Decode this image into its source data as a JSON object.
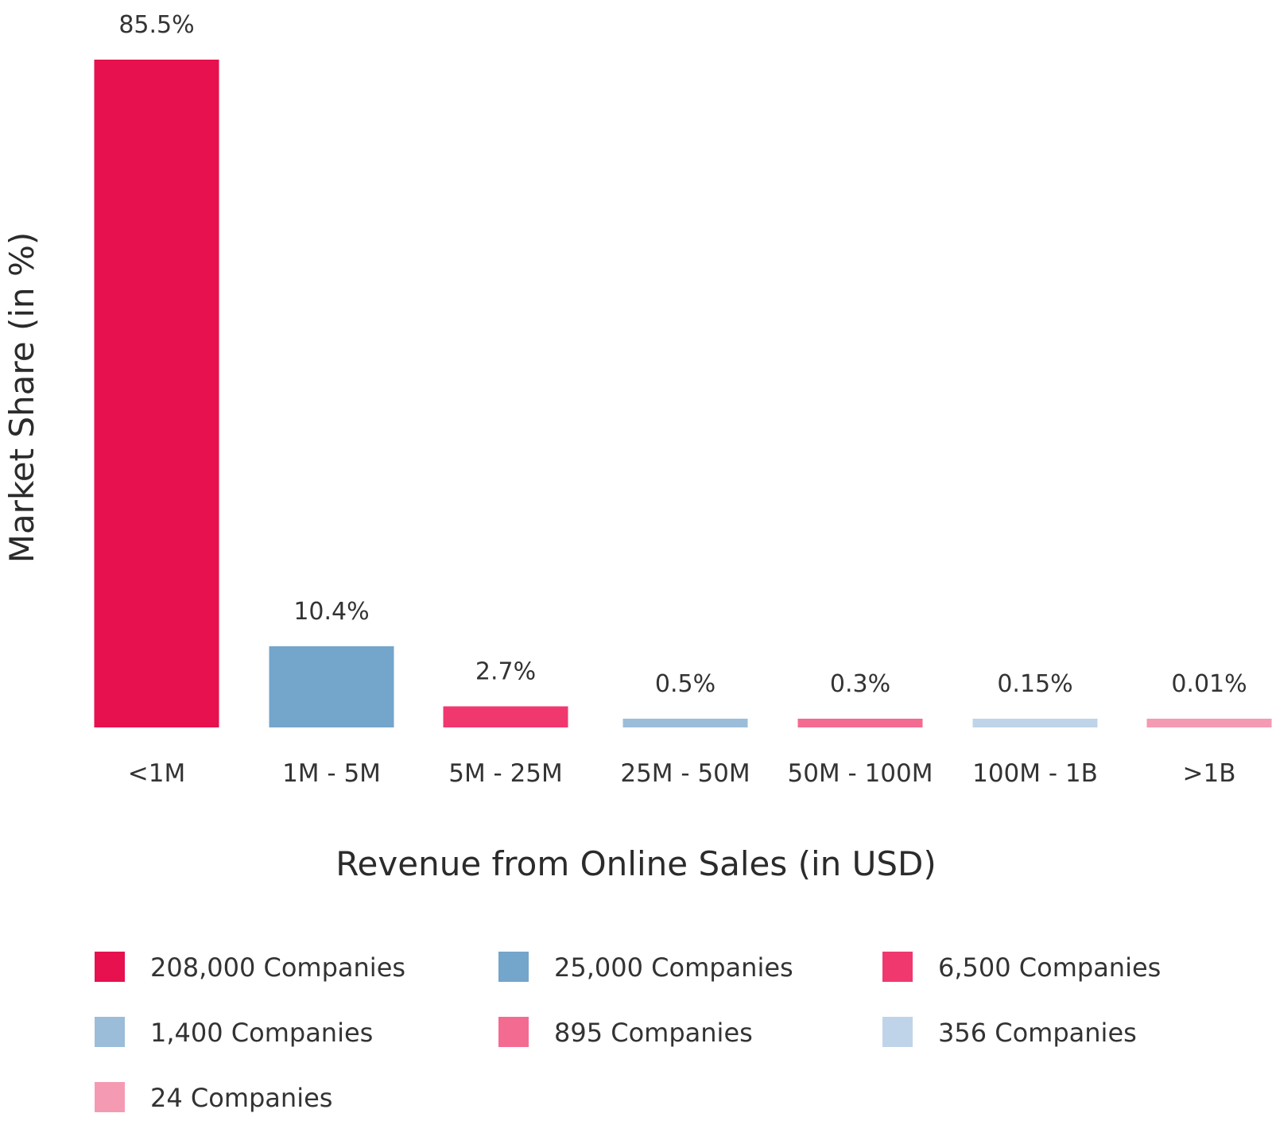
{
  "chart_data": {
    "type": "bar",
    "categories": [
      "<1M",
      "1M - 5M",
      "5M - 25M",
      "25M - 50M",
      "50M - 100M",
      "100M - 1B",
      ">1B"
    ],
    "values": [
      85.5,
      10.4,
      2.7,
      0.5,
      0.3,
      0.15,
      0.01
    ],
    "value_labels": [
      "85.5%",
      "10.4%",
      "2.7%",
      "0.5%",
      "0.3%",
      "0.15%",
      "0.01%"
    ],
    "colors": [
      "#e6114e",
      "#74a5cb",
      "#f0386f",
      "#9bbdd9",
      "#f36b91",
      "#bfd4e8",
      "#f59ab3"
    ],
    "xlabel": "Revenue from Online Sales (in USD)",
    "ylabel": "Market Share (in %)",
    "legend_placement": "bottom",
    "legend": [
      {
        "label": "208,000 Companies",
        "color": "#e6114e"
      },
      {
        "label": "25,000 Companies",
        "color": "#74a5cb"
      },
      {
        "label": "6,500 Companies",
        "color": "#f0386f"
      },
      {
        "label": "1,400 Companies",
        "color": "#9bbdd9"
      },
      {
        "label": "895 Companies",
        "color": "#f36b91"
      },
      {
        "label": "356 Companies",
        "color": "#bfd4e8"
      },
      {
        "label": "24 Companies",
        "color": "#f59ab3"
      }
    ],
    "grid": false
  }
}
